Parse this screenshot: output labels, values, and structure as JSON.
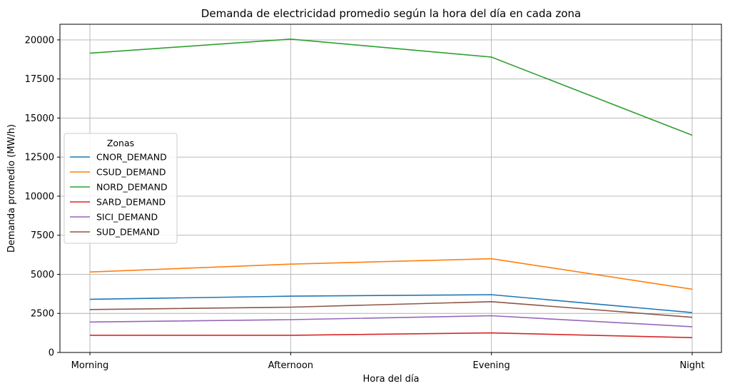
{
  "chart_data": {
    "type": "line",
    "title": "Demanda de electricidad promedio según la hora del día en cada zona",
    "xlabel": "Hora del día",
    "ylabel": "Demanda promedio (MW/h)",
    "categories": [
      "Morning",
      "Afternoon",
      "Evening",
      "Night"
    ],
    "ylim": [
      0,
      21000
    ],
    "yticks": [
      0,
      2500,
      5000,
      7500,
      10000,
      12500,
      15000,
      17500,
      20000
    ],
    "grid": true,
    "legend": {
      "title": "Zonas",
      "placement": "center-left"
    },
    "series": [
      {
        "name": "CNOR_DEMAND",
        "color": "#1f77b4",
        "values": [
          3400,
          3600,
          3700,
          2550
        ]
      },
      {
        "name": "CSUD_DEMAND",
        "color": "#ff7f0e",
        "values": [
          5150,
          5650,
          6000,
          4050
        ]
      },
      {
        "name": "NORD_DEMAND",
        "color": "#2ca02c",
        "values": [
          19150,
          20050,
          18900,
          13900
        ]
      },
      {
        "name": "SARD_DEMAND",
        "color": "#d62728",
        "values": [
          1100,
          1100,
          1250,
          950
        ]
      },
      {
        "name": "SICI_DEMAND",
        "color": "#9467bd",
        "values": [
          1950,
          2100,
          2350,
          1650
        ]
      },
      {
        "name": "SUD_DEMAND",
        "color": "#8c564b",
        "values": [
          2750,
          2900,
          3250,
          2250
        ]
      }
    ]
  }
}
